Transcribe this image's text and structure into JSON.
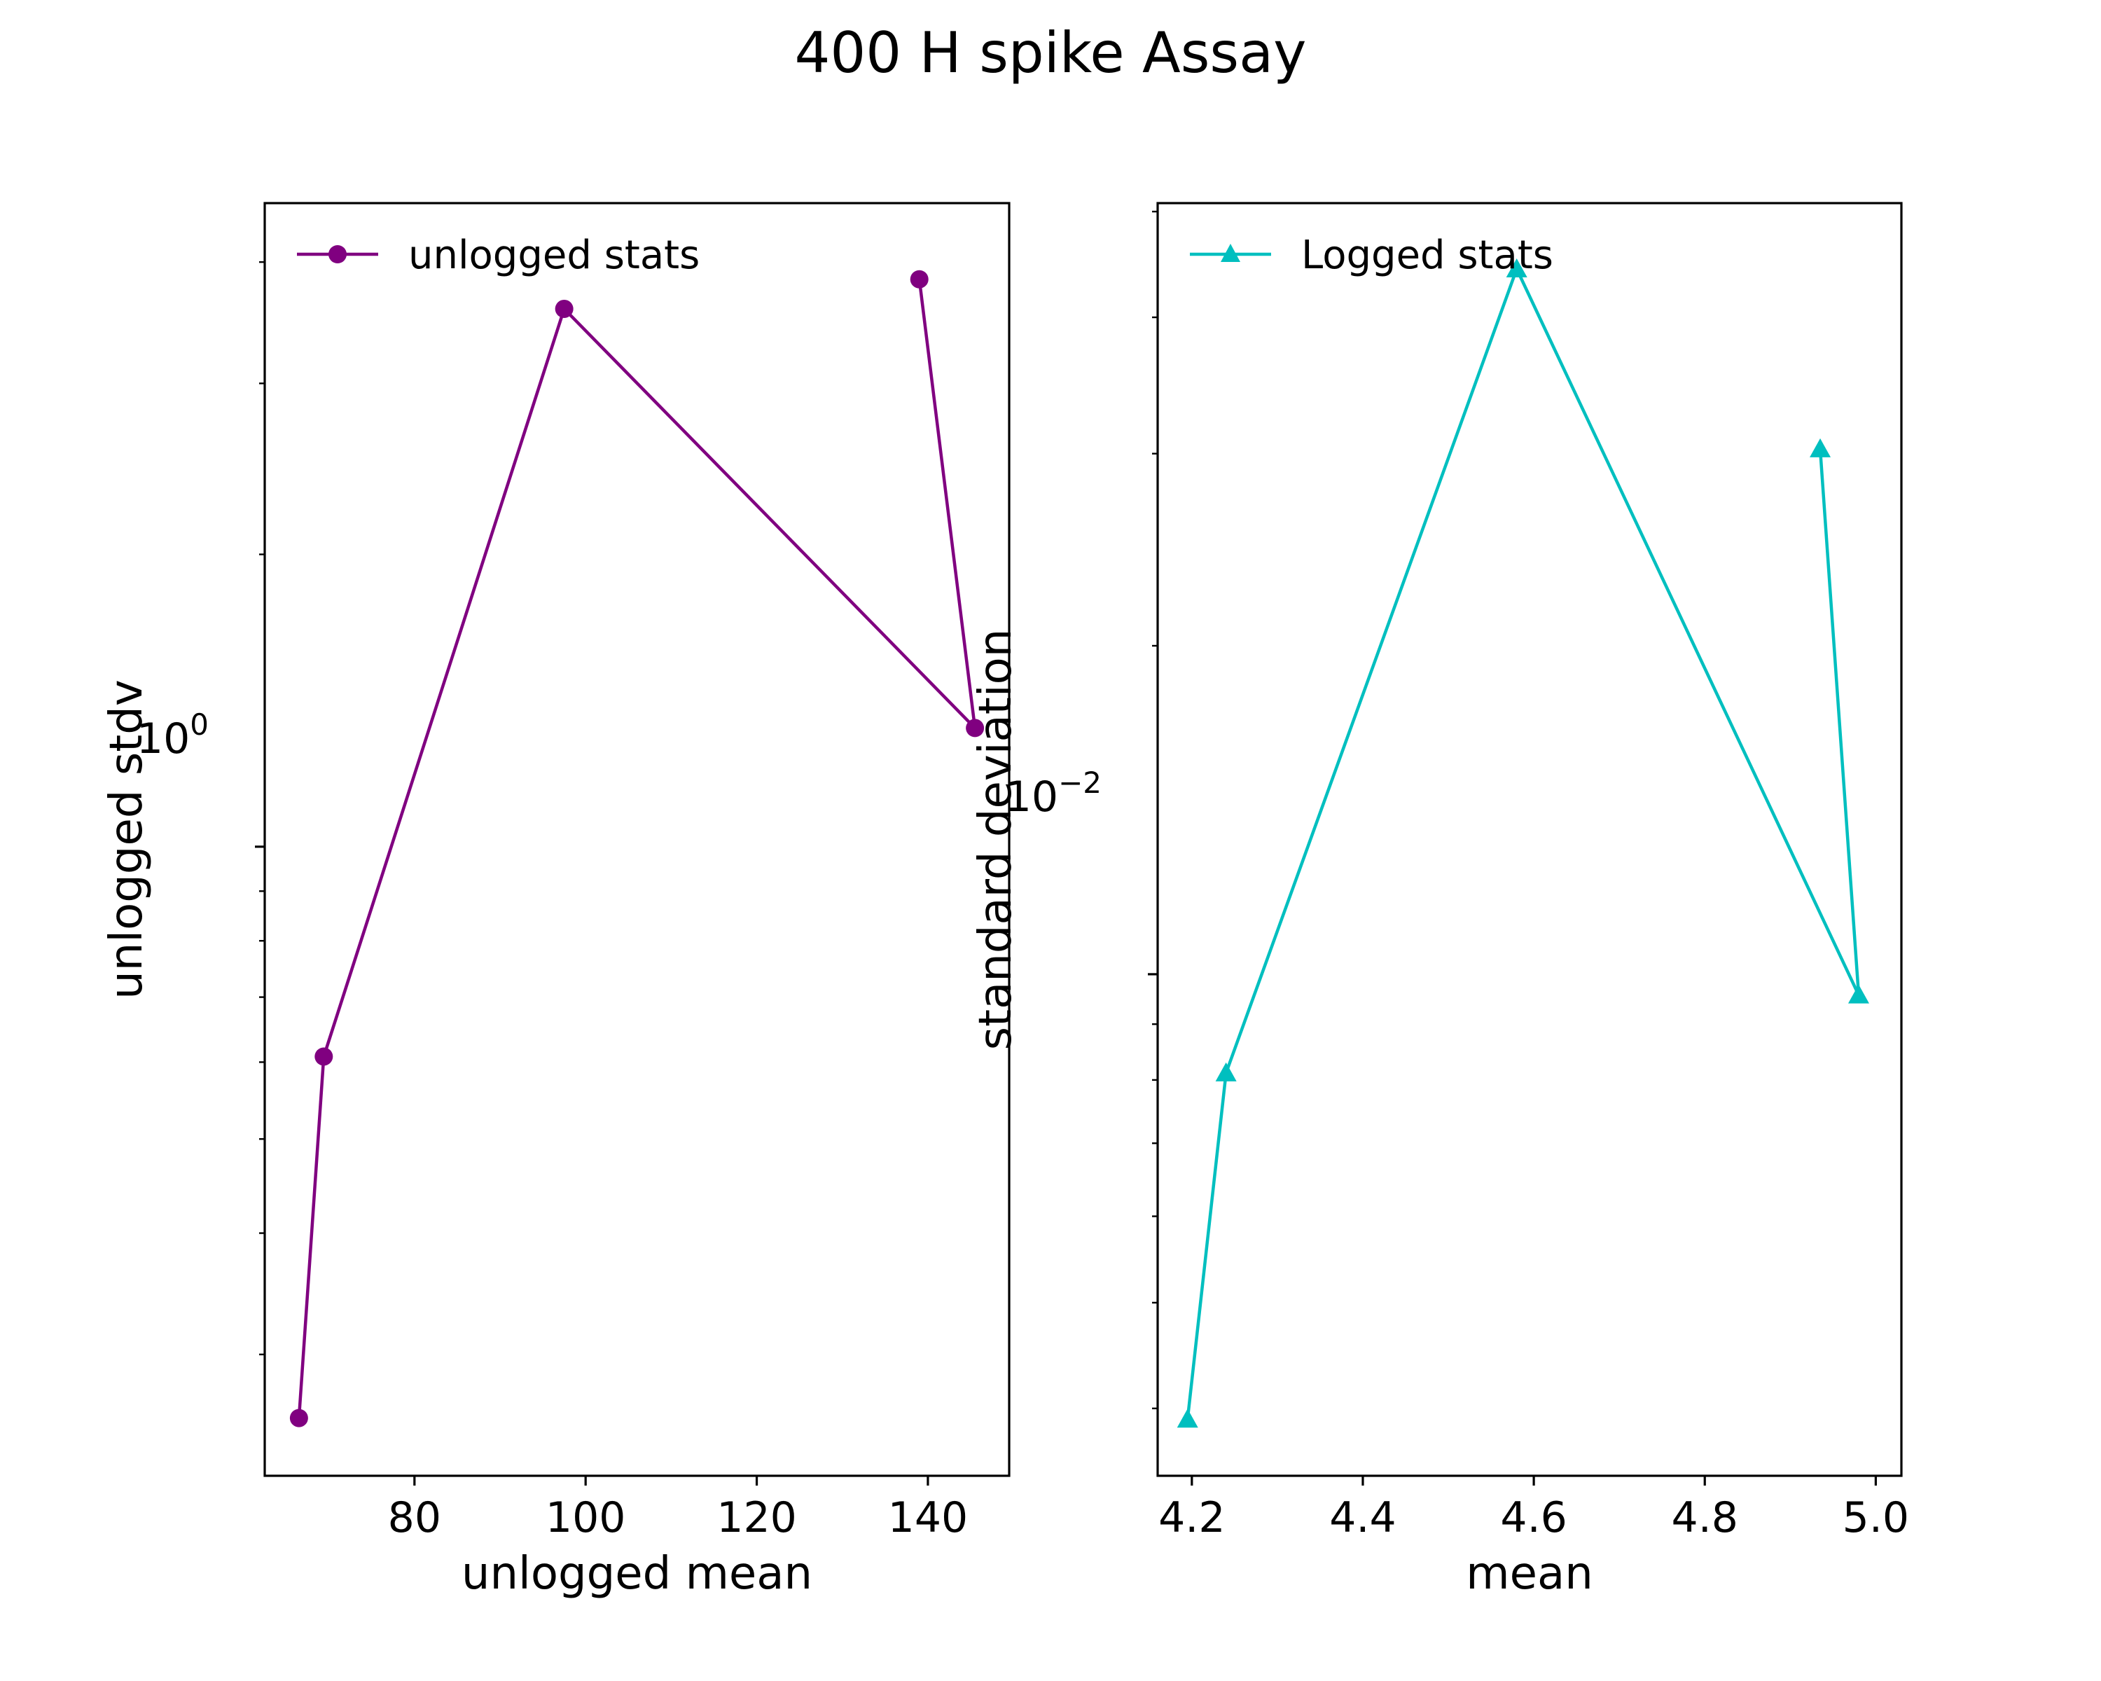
{
  "chart_data": [
    {
      "type": "line",
      "title": "400 H spike Assay",
      "xlabel": "unlogged mean",
      "ylabel": "unlogged stdv",
      "yscale": "log",
      "xlim": [
        62.5,
        149.5
      ],
      "ylim": [
        0.225,
        4.6
      ],
      "x_ticks": [
        80,
        100,
        120,
        140
      ],
      "x_tick_labels": [
        "80",
        "100",
        "120",
        "140"
      ],
      "y_ticks": [
        1.0
      ],
      "y_tick_label": {
        "base": "10",
        "exponent": "0"
      },
      "grid": false,
      "legend_position": "upper-left",
      "series": [
        {
          "name": "unlogged stats",
          "color": "#800080",
          "marker": "circle",
          "x": [
            66.5,
            69.4,
            97.5,
            145.5,
            139.0
          ],
          "y": [
            0.258,
            0.608,
            3.58,
            1.325,
            3.84
          ]
        }
      ]
    },
    {
      "type": "line",
      "xlabel": "mean",
      "ylabel": "standard deviation",
      "yscale": "log",
      "xlim": [
        4.16,
        5.03
      ],
      "ylim": [
        0.00347,
        0.0509
      ],
      "x_ticks": [
        4.2,
        4.4,
        4.6,
        4.8,
        5.0
      ],
      "x_tick_labels": [
        "4.2",
        "4.4",
        "4.6",
        "4.8",
        "5.0"
      ],
      "y_ticks": [
        0.01
      ],
      "y_tick_label": {
        "base": "10",
        "exponent": "−2"
      },
      "grid": false,
      "legend_position": "upper-left",
      "series": [
        {
          "name": "Logged stats",
          "color": "#00BFBF",
          "marker": "triangle",
          "x": [
            4.195,
            4.24,
            4.58,
            4.98,
            4.935
          ],
          "y": [
            0.00391,
            0.00812,
            0.0443,
            0.00957,
            0.0303
          ]
        }
      ]
    }
  ]
}
